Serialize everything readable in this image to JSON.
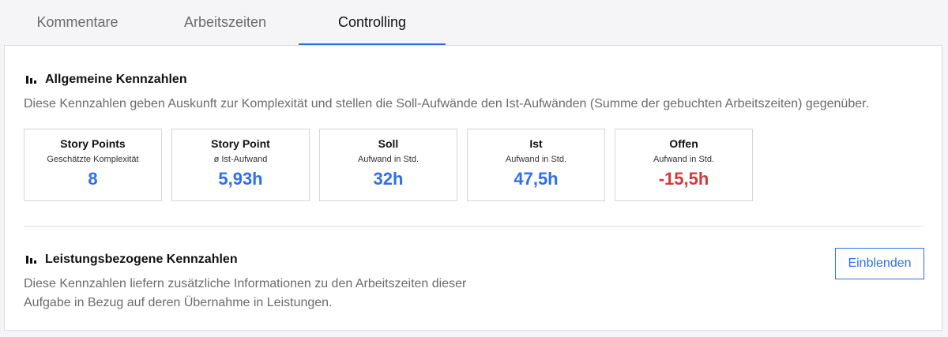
{
  "tabs": [
    {
      "label": "Kommentare"
    },
    {
      "label": "Arbeitszeiten"
    },
    {
      "label": "Controlling"
    }
  ],
  "active_tab": "Controlling",
  "colors": {
    "accent": "#2f6fe8",
    "negative": "#d2393c"
  },
  "general": {
    "title": "Allgemeine Kennzahlen",
    "icon": "bar-chart-icon",
    "description": "Diese Kennzahlen geben Auskunft zur Komplexität und stellen die Soll-Aufwände den Ist-Aufwänden (Summe der gebuchten Arbeitszeiten) gegenüber.",
    "cards": [
      {
        "title": "Story Points",
        "subtitle": "Geschätzte Komplexität",
        "value": "8"
      },
      {
        "title": "Story Point",
        "subtitle": "ø Ist-Aufwand",
        "value": "5,93h"
      },
      {
        "title": "Soll",
        "subtitle": "Aufwand in Std.",
        "value": "32h"
      },
      {
        "title": "Ist",
        "subtitle": "Aufwand in Std.",
        "value": "47,5h"
      },
      {
        "title": "Offen",
        "subtitle": "Aufwand in Std.",
        "value": "-15,5h"
      }
    ]
  },
  "performance": {
    "title": "Leistungsbezogene Kennzahlen",
    "icon": "bar-chart-icon",
    "description_line1": "Diese Kennzahlen liefern zusätzliche Informationen zu den Arbeitszeiten dieser",
    "description_line2": "Aufgabe in Bezug auf deren Übernahme in Leistungen.",
    "button_label": "Einblenden"
  }
}
